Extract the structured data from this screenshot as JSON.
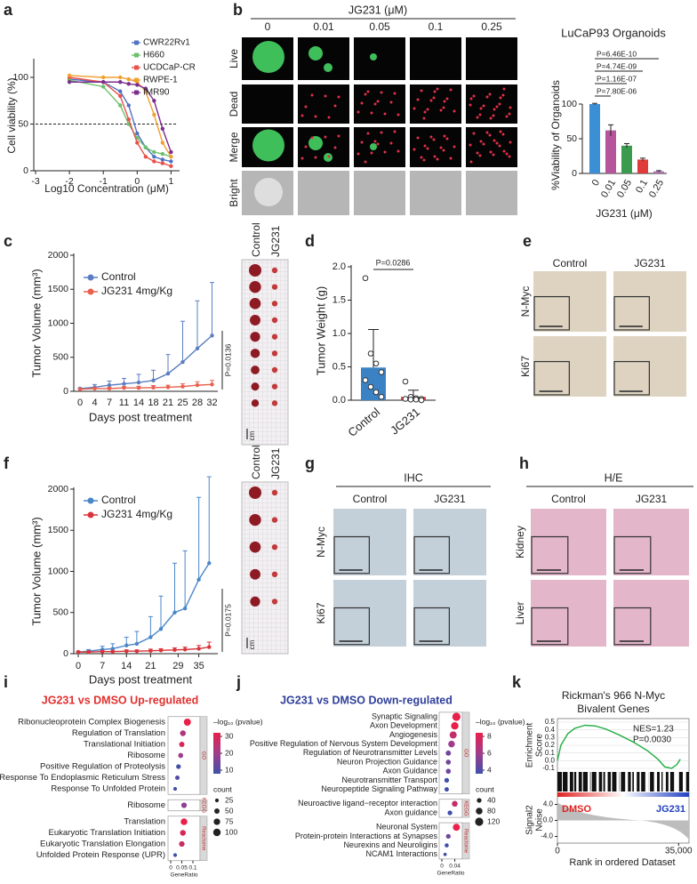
{
  "a": {
    "letter": "a",
    "ylabel": "Cell viability (%)",
    "xlabel": "Log10 Concentration (μM)",
    "xlim": [
      -3,
      1.2
    ],
    "xticks": [
      -3,
      -2,
      -1,
      0,
      1
    ],
    "ylim": [
      0,
      120
    ],
    "yticks": [
      0,
      50,
      100
    ],
    "reference_line": 50,
    "x": [
      -2,
      -1,
      -0.5,
      -0.25,
      0,
      0.25,
      0.5,
      0.75,
      1
    ],
    "series": [
      {
        "name": "CWR22Rv1",
        "color": "#4f72c4",
        "values": [
          98,
          95,
          85,
          70,
          40,
          25,
          15,
          12,
          10
        ]
      },
      {
        "name": "H660",
        "color": "#6cc06c",
        "values": [
          97,
          90,
          70,
          50,
          35,
          25,
          20,
          18,
          15
        ]
      },
      {
        "name": "UCDCaP-CR",
        "color": "#e8514a",
        "values": [
          100,
          95,
          80,
          55,
          30,
          15,
          10,
          8,
          5
        ]
      },
      {
        "name": "RWPE-1",
        "color": "#f0a030",
        "values": [
          102,
          100,
          100,
          98,
          95,
          85,
          60,
          30,
          15
        ]
      },
      {
        "name": "IMR90",
        "color": "#7b2d8e",
        "values": [
          95,
          95,
          95,
          93,
          92,
          88,
          75,
          45,
          20
        ]
      }
    ]
  },
  "b": {
    "letter": "b",
    "header": "JG231 (μM)",
    "columns": [
      "0",
      "0.01",
      "0.05",
      "0.1",
      "0.25"
    ],
    "rows": [
      "Live",
      "Dead",
      "Merge",
      "Bright"
    ],
    "chart": {
      "type": "bar",
      "title": "LuCaP93 Organoids",
      "ylabel": "%Viability of Organoids",
      "xlabel": "JG231 (μM)",
      "categories": [
        "0",
        "0.01",
        "0.05",
        "0.1",
        "0.25"
      ],
      "values": [
        100,
        62,
        40,
        20,
        3
      ],
      "errors": [
        1,
        8,
        3,
        2,
        1
      ],
      "colors": [
        "#3b8fd4",
        "#b5559c",
        "#3a9a4e",
        "#e03a3a",
        "#b070b0"
      ],
      "ylim": [
        0,
        100
      ],
      "yticks": [
        0,
        50,
        100
      ],
      "comparisons": [
        "P=7.80E-06",
        "P=1.16E-07",
        "P=4.74E-09",
        "P=6.46E-10"
      ]
    }
  },
  "c": {
    "letter": "c",
    "type": "line",
    "ylabel": "Tumor Volume (mm³)",
    "xlabel": "Days post treatment",
    "categories": [
      "0",
      "4",
      "7",
      "11",
      "14",
      "18",
      "21",
      "25",
      "28",
      "32"
    ],
    "series": [
      {
        "name": "Control",
        "color": "#5b7ec2",
        "values": [
          40,
          60,
          90,
          110,
          130,
          160,
          260,
          430,
          630,
          820
        ],
        "errors": [
          10,
          40,
          60,
          80,
          120,
          150,
          280,
          600,
          700,
          780
        ]
      },
      {
        "name": "JG231 4mg/Kg",
        "color": "#e8614f",
        "values": [
          30,
          40,
          40,
          50,
          50,
          55,
          60,
          70,
          90,
          100
        ],
        "errors": [
          10,
          15,
          20,
          20,
          25,
          30,
          30,
          40,
          50,
          60
        ]
      }
    ],
    "ylim": [
      0,
      2000
    ],
    "yticks": [
      0,
      500,
      1000,
      1500,
      2000
    ],
    "annotation": "P=0.0136",
    "photo_labels": [
      "Control",
      "JG231"
    ],
    "scale": "cm"
  },
  "d": {
    "letter": "d",
    "type": "bar",
    "ylabel": "Tumor Weight (g)",
    "categories": [
      "Control",
      "JG231"
    ],
    "values": [
      0.49,
      0.05
    ],
    "errors": [
      0.57,
      0.1
    ],
    "colors": [
      "#3b82c4",
      "#e0413a"
    ],
    "points": [
      [
        1.83,
        0.7,
        0.55,
        0.42,
        0.3,
        0.2,
        0.12,
        0.05
      ],
      [
        0.28,
        0.05,
        0.03,
        0.02,
        0.02,
        0.01,
        0.01,
        0.0
      ]
    ],
    "ylim": [
      0,
      2.0
    ],
    "yticks": [
      {
        "value": 0,
        "label": "0.0"
      },
      0.5,
      {
        "value": 1,
        "label": "1.0"
      },
      1.5,
      {
        "value": 2,
        "label": "2.0"
      }
    ],
    "annotation": "P=0.0286"
  },
  "e": {
    "letter": "e",
    "columns": [
      "Control",
      "JG231"
    ],
    "rows": [
      "N-Myc",
      "Ki67"
    ]
  },
  "f": {
    "letter": "f",
    "type": "line",
    "ylabel": "Tumor Volume (mm³)",
    "xlabel": "Days post treatment",
    "x": [
      0,
      3,
      7,
      10,
      14,
      17,
      21,
      24,
      28,
      31,
      35,
      38
    ],
    "series": [
      {
        "name": "Control",
        "color": "#4a86c8",
        "values": [
          20,
          30,
          50,
          60,
          100,
          120,
          200,
          300,
          500,
          550,
          900,
          1100
        ],
        "errors": [
          10,
          20,
          40,
          60,
          100,
          150,
          250,
          400,
          600,
          700,
          1000,
          1050
        ]
      },
      {
        "name": "JG231 4mg/Kg",
        "color": "#d9343a",
        "values": [
          20,
          20,
          25,
          25,
          30,
          30,
          35,
          40,
          45,
          50,
          60,
          80
        ],
        "errors": [
          5,
          10,
          10,
          10,
          15,
          15,
          20,
          20,
          25,
          30,
          40,
          60
        ]
      }
    ],
    "xlim": [
      0,
      40
    ],
    "xticks": [
      0,
      7,
      14,
      21,
      29,
      35
    ],
    "ylim": [
      0,
      2000
    ],
    "yticks": [
      0,
      500,
      1000,
      1500,
      2000
    ],
    "annotation": "P=0.0175",
    "photo_labels": [
      "Control",
      "JG231"
    ],
    "scale": "cm"
  },
  "g": {
    "letter": "g",
    "header": "IHC",
    "columns": [
      "Control",
      "JG231"
    ],
    "rows": [
      "N-Myc",
      "Ki67"
    ]
  },
  "h": {
    "letter": "h",
    "header": "H/E",
    "columns": [
      "Control",
      "JG231"
    ],
    "rows": [
      "Kidney",
      "Liver"
    ]
  },
  "i": {
    "letter": "i",
    "title": "JG231 vs DMSO Up-regulated",
    "title_color": "#e0302e",
    "groups": [
      {
        "label": "GO",
        "terms": [
          {
            "name": "Ribonucleoprotein Complex Biogenesis",
            "ratio": 0.075,
            "neglog10p": 32,
            "count": 90
          },
          {
            "name": "Regulation of Translation",
            "ratio": 0.055,
            "neglog10p": 22,
            "count": 60
          },
          {
            "name": "Translational Initiation",
            "ratio": 0.05,
            "neglog10p": 28,
            "count": 50
          },
          {
            "name": "Ribosome",
            "ratio": 0.045,
            "neglog10p": 20,
            "count": 45
          },
          {
            "name": "Positive Regulation of Proteolysis",
            "ratio": 0.035,
            "neglog10p": 10,
            "count": 40
          },
          {
            "name": "Response To Endoplasmic Reticulum Stress",
            "ratio": 0.03,
            "neglog10p": 12,
            "count": 35
          },
          {
            "name": "Response To Unfolded Protein",
            "ratio": 0.02,
            "neglog10p": 8,
            "count": 25
          }
        ]
      },
      {
        "label": "KEGG",
        "terms": [
          {
            "name": "Ribosome",
            "ratio": 0.06,
            "neglog10p": 18,
            "count": 55
          }
        ]
      },
      {
        "label": "Reactome",
        "terms": [
          {
            "name": "Translation",
            "ratio": 0.06,
            "neglog10p": 30,
            "count": 80
          },
          {
            "name": "Eukaryotic Translation Initiation",
            "ratio": 0.055,
            "neglog10p": 28,
            "count": 60
          },
          {
            "name": "Eukaryotic Translation Elongation",
            "ratio": 0.05,
            "neglog10p": 26,
            "count": 55
          },
          {
            "name": "Unfolded Protein Response (UPR)",
            "ratio": 0.02,
            "neglog10p": 6,
            "count": 25
          }
        ]
      }
    ],
    "xlabel": "GeneRatio",
    "xlim": [
      0,
      0.12
    ],
    "xticks": [
      0,
      0.05,
      0.1
    ],
    "color_title": "–log₁₀ (pvalue)",
    "color_ticks": [
      10,
      20,
      30
    ],
    "size_title": "count",
    "size_ticks": [
      25,
      50,
      75,
      100
    ]
  },
  "j": {
    "letter": "j",
    "title": "JG231 vs DMSO Down-regulated",
    "title_color": "#2f3f9a",
    "groups": [
      {
        "label": "GO",
        "terms": [
          {
            "name": "Synaptic Signaling",
            "ratio": 0.045,
            "neglog10p": 9,
            "count": 120
          },
          {
            "name": "Axon Development",
            "ratio": 0.04,
            "neglog10p": 8,
            "count": 100
          },
          {
            "name": "Angiogenesis",
            "ratio": 0.035,
            "neglog10p": 7,
            "count": 90
          },
          {
            "name": "Positive Regulation of Nervous System Development",
            "ratio": 0.03,
            "neglog10p": 6,
            "count": 80
          },
          {
            "name": "Regulation of Neurotransmitter Levels",
            "ratio": 0.02,
            "neglog10p": 5,
            "count": 50
          },
          {
            "name": "Neuron Projection Guidance",
            "ratio": 0.02,
            "neglog10p": 5,
            "count": 45
          },
          {
            "name": "Axon Guidance",
            "ratio": 0.02,
            "neglog10p": 5,
            "count": 45
          },
          {
            "name": "Neurotransmitter Transport",
            "ratio": 0.015,
            "neglog10p": 4,
            "count": 40
          },
          {
            "name": "Neuropeptide Signaling Pathway",
            "ratio": 0.015,
            "neglog10p": 4,
            "count": 35
          }
        ]
      },
      {
        "label": "KEGG",
        "terms": [
          {
            "name": "Neuroactive ligand−receptor interaction",
            "ratio": 0.04,
            "neglog10p": 7,
            "count": 60
          },
          {
            "name": "Axon guidance",
            "ratio": 0.025,
            "neglog10p": 4,
            "count": 40
          }
        ]
      },
      {
        "label": "Reactome",
        "terms": [
          {
            "name": "Neuronal System",
            "ratio": 0.045,
            "neglog10p": 8,
            "count": 90
          },
          {
            "name": "Protein-protein Interactions at Synapses",
            "ratio": 0.02,
            "neglog10p": 5,
            "count": 40
          },
          {
            "name": "Neurexins and Neuroligins",
            "ratio": 0.015,
            "neglog10p": 4,
            "count": 30
          },
          {
            "name": "NCAM1 Interactions",
            "ratio": 0.01,
            "neglog10p": 3,
            "count": 20
          }
        ]
      }
    ],
    "xlabel": "GeneRatio",
    "xlim": [
      0,
      0.055
    ],
    "xticks": [
      0,
      0.04
    ],
    "color_title": "–log₁₀ (pvalue)",
    "color_ticks": [
      4,
      6,
      8
    ],
    "size_title": "count",
    "size_ticks": [
      40,
      80,
      120
    ]
  },
  "k": {
    "letter": "k",
    "title": [
      "Rickman's 966 N-Myc",
      "Bivalent Genes"
    ],
    "es_ylabel": [
      "Enrichment",
      "Score"
    ],
    "es_ylim": [
      -0.1,
      0.5
    ],
    "es_yticks": [
      0.5,
      0.4,
      0.3,
      0.2,
      0.1,
      {
        "value": 0,
        "label": "0.0"
      },
      -0.1
    ],
    "x": [
      0,
      1000,
      3000,
      5000,
      8000,
      11000,
      14000,
      18000,
      22000,
      26000,
      29000,
      31000,
      33000,
      34500,
      35500
    ],
    "es": [
      0,
      0.2,
      0.35,
      0.42,
      0.46,
      0.45,
      0.41,
      0.33,
      0.24,
      0.13,
      0.02,
      -0.08,
      -0.1,
      -0.05,
      0.02
    ],
    "es_color": "#2bb04a",
    "annotations": [
      "NES=1.23",
      "P=0.0030"
    ],
    "s2n_ylabel": [
      "Signal2",
      "Noise"
    ],
    "s2n_ylim": [
      -5,
      5
    ],
    "s2n_yticks": [
      {
        "value": 4,
        "label": "4.0"
      },
      {
        "value": 0,
        "label": "0.0"
      },
      {
        "value": -4,
        "label": "-4.0"
      }
    ],
    "left_label": "DMSO",
    "right_label": "JG231",
    "xlabel": "Rank in ordered Dataset",
    "xlim": [
      0,
      38000
    ],
    "xticks": [
      0,
      {
        "value": 35000,
        "label": "35,000"
      }
    ]
  }
}
